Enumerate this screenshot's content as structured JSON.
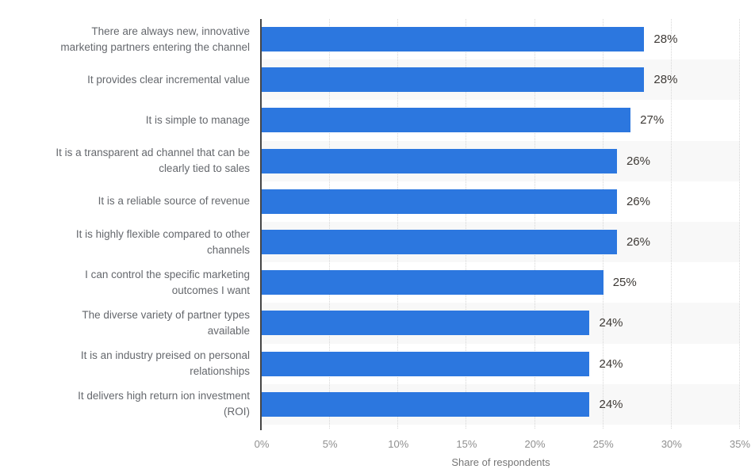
{
  "chart_data": {
    "type": "bar",
    "orientation": "horizontal",
    "title": "",
    "xlabel": "Share of respondents",
    "ylabel": "",
    "xlim": [
      0,
      35
    ],
    "x_ticks": [
      "0%",
      "5%",
      "10%",
      "15%",
      "20%",
      "25%",
      "30%",
      "35%"
    ],
    "grid": "vertical dotted gridlines, alternating row bands",
    "legend_position": "none",
    "bar_color": "#2c77df",
    "band_color": "#f8f8f8",
    "axis_line_color": "#464646",
    "categories": [
      "There are always new, innovative\nmarketing partners entering the channel",
      "It provides clear incremental value",
      "It is simple to manage",
      "It is a transparent ad channel that can be\nclearly tied to sales",
      "It is a reliable source of revenue",
      "It is highly flexible compared to other\nchannels",
      "I can control the specific marketing\noutcomes I want",
      "The diverse variety of partner types\navailable",
      "It is an industry preised on personal\nrelationships",
      "It delivers high return ion investment\n(ROI)"
    ],
    "values": [
      28,
      28,
      27,
      26,
      26,
      26,
      25,
      24,
      24,
      24
    ],
    "value_labels": [
      "28%",
      "28%",
      "27%",
      "26%",
      "26%",
      "26%",
      "25%",
      "24%",
      "24%",
      "24%"
    ]
  }
}
